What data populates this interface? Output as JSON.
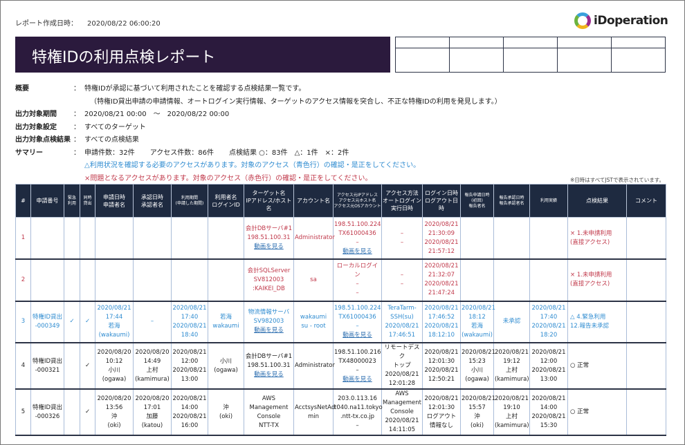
{
  "header": {
    "created_label": "レポート作成日時：",
    "created_value": "2020/08/22 06:00:20",
    "logo": "iDoperation",
    "title": "特権IDの利用点検レポート"
  },
  "meta": {
    "overview_label": "概要",
    "overview": "特権IDが承認に基づいて利用されたことを確認する点検結果一覧です。",
    "overview_sub": "（特権ID貸出申請の申請情報、オートログイン実行情報、ターゲットのアクセス情報を突合し、不正な特権IDの利用を発見します。）",
    "period_label": "出力対象期間",
    "period": "2020/08/21 00:00　～　2020/08/22 00:00",
    "setting_label": "出力対象設定",
    "setting": "すべてのターゲット",
    "result_label": "出力対象点検結果",
    "result": "すべての点検結果",
    "summary_label": "サマリー",
    "s1": "申請件数：32件",
    "s2": "アクセス件数：86件",
    "s3": "点検結果 ○：83件　△：1件　×：2件",
    "warn_blue": "△利用状況を確認する必要のアクセスがあります。対象のアクセス（青色行）の確認・是正をしてください。",
    "warn_red": "×問題となるアクセスがあります。対象のアクセス（赤色行）の確認・是正をしてください。",
    "colon": "："
  },
  "jst_note": "※日時はすべてJSTで表示されています。",
  "colors": {
    "title_bg": "#2b1a3d",
    "header_bg": "#1e2a40",
    "red": "#c0384a",
    "blue": "#2e8bd0"
  },
  "columns": [
    "#",
    "申請番号",
    "緊急\n利用",
    "同時\n貸出",
    "申請日時\n申請者名",
    "承認日時\n承認者名",
    "利用期間\n(申請した期間)",
    "利用者名\nログインID",
    "ターゲット名\nIPアドレス/ホスト名",
    "アカウント名",
    "アクセス元IPアドレス\nアクセス元ホスト名\nアクセス元OSアカウント",
    "アクセス方法\nオートログイン\n実行日時",
    "ログイン日時\nログアウト日時",
    "報告申請日時\n(初回)\n報告者名",
    "報告承認日時\n報告承認者名",
    "利用実績",
    "点検結果",
    "コメント"
  ],
  "rows": [
    {
      "color": "red",
      "cells": [
        "1",
        "",
        "",
        "",
        "",
        "",
        "",
        "",
        "会計DBサーバ#1\n198.51.100.31",
        "Administrator",
        "198.51.100.224\nTX61000436\n–",
        "–\n–",
        "2020/08/21\n21:30:09\n2020/08/21\n21:57:12",
        "",
        "",
        "",
        "× 1.未申請利用\n(直接アクセス)",
        ""
      ],
      "links": {
        "8": "動画を見る",
        "10": "動画を見る"
      }
    },
    {
      "color": "red",
      "cells": [
        "2",
        "",
        "",
        "",
        "",
        "",
        "",
        "",
        "会計SQLServer\nSV812003\n:KAIKEI_DB",
        "sa",
        "ローカルログイン\n–\n–",
        "–\n–",
        "2020/08/21\n21:32:07\n2020/08/21\n21:47:24",
        "",
        "",
        "",
        "× 1.未申請利用\n(直接アクセス)",
        ""
      ],
      "links": {}
    },
    {
      "color": "blue",
      "cells": [
        "3",
        "特権ID貸出\n-000349",
        "✓",
        "✓",
        "2020/08/21\n17:44\n若海\n(wakaumi)",
        "–",
        "2020/08/21\n17:40\n2020/08/21\n18:40",
        "若海\nwakaumi",
        "物流情報サーバ\nSV982003",
        "wakaumi\nsu - root",
        "198.51.100.224\nTX61000436\n–",
        "TeraTarm-\nSSH(su)\n2020/08/21\n17:46:51",
        "2020/08/21\n17:46:52\n2020/08/21\n18:12:10",
        "2020/08/21\n18:12\n若海\n(wakaumi)",
        "未承認",
        "2020/08/21\n17:40\n2020/08/21\n18:20",
        "△ 4.緊急利用\n12.報告未承認",
        ""
      ],
      "links": {
        "8": "動画を見る",
        "10": "動画を見る"
      }
    },
    {
      "color": "black",
      "cells": [
        "4",
        "特権ID貸出\n-000321",
        "",
        "✓",
        "2020/08/20\n10:12\n小川\n(ogawa)",
        "2020/08/20\n14:49\n上村\n(kamimura)",
        "2020/08/21\n12:00\n2020/08/21\n13:00",
        "小川\n(ogawa)",
        "会計DBサーバ#1\n198.51.100.31",
        "Administrator",
        "198.51.100.216\nTX48000023\n–",
        "リモートデスク\nトップ\n2020/08/21\n12:01:28",
        "2020/08/21\n12:01:30\n2020/08/21\n12:50:21",
        "2020/08/21\n15:23\n小川\n(ogawa)",
        "2020/08/21\n19:12\n上村\n(kamimura)",
        "2020/08/21\n12:00\n2020/08/21\n13:00",
        "○ 正常",
        ""
      ],
      "links": {
        "8": "動画を見る",
        "10": "動画を見る"
      }
    },
    {
      "color": "black",
      "cells": [
        "5",
        "特権ID貸出\n-000326",
        "",
        "✓",
        "2020/08/20\n13:56\n沖\n(oki)",
        "2020/08/20\n17:01\n加藤\n(katou)",
        "2020/08/21\n14:00\n2020/08/21\n16:00",
        "沖\n(oki)",
        "AWS\nManagement\nConsole\nNTT-TX",
        "AcctsysNetAd\nmin",
        "203.0.113.16\nt040.na11.tokyo\n.ntt-tx.co.jp\n–",
        "AWS\nManagement\nConsole\n2020/08/21\n14:11:05",
        "2020/08/21\n12:01:30\nログアウト\n情報なし",
        "2020/08/21\n15:57\n沖\n(oki)",
        "2020/08/21\n19:10\n上村\n(kamimura)",
        "2020/08/21\n14:00\n2020/08/21\n15:30",
        "○ 正常",
        ""
      ],
      "links": {}
    }
  ]
}
